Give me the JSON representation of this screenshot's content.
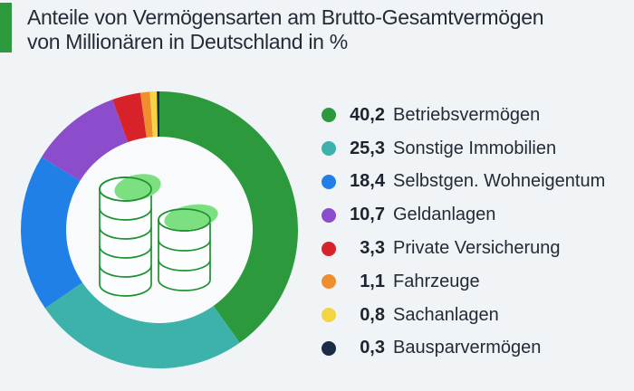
{
  "header": {
    "title_line1": "Anteile von Vermögensarten am Brutto-Gesamtvermögen",
    "title_line2": "von Millionären in Deutschland in %",
    "accent_color": "#2c9a3c"
  },
  "colors": {
    "background": "#f1f4f7",
    "donut_hole": "#f8fafc",
    "coin_outline": "#1f9132",
    "coin_highlight": "#7de080",
    "coin_face": "#fbfdfe"
  },
  "chart_data": {
    "type": "pie",
    "donut": true,
    "title": "Anteile von Vermögensarten am Brutto-Gesamtvermögen von Millionären in Deutschland in %",
    "unit": "%",
    "direction": "clockwise",
    "start_angle_deg": 0,
    "hole_ratio": 0.65,
    "legend_position": "right",
    "center_icon": "coin-stacks",
    "series": [
      {
        "id": "betriebsvermoegen",
        "label": "Betriebsvermögen",
        "value": 40.2,
        "display": "40,2",
        "color": "#2c9a3c"
      },
      {
        "id": "sonstige-immobilien",
        "label": "Sonstige Immobilien",
        "value": 25.3,
        "display": "25,3",
        "color": "#3cb2aa"
      },
      {
        "id": "wohneigentum",
        "label": "Selbstgen. Wohneigentum",
        "value": 18.4,
        "display": "18,4",
        "color": "#2180e8"
      },
      {
        "id": "geldanlagen",
        "label": "Geldanlagen",
        "value": 10.7,
        "display": "10,7",
        "color": "#8c4dcd"
      },
      {
        "id": "private-versicherung",
        "label": "Private Versicherung",
        "value": 3.3,
        "display": "3,3",
        "color": "#d7222a"
      },
      {
        "id": "fahrzeuge",
        "label": "Fahrzeuge",
        "value": 1.1,
        "display": "1,1",
        "color": "#ef8e2e"
      },
      {
        "id": "sachanlagen",
        "label": "Sachanlagen",
        "value": 0.8,
        "display": "0,8",
        "color": "#f5d443"
      },
      {
        "id": "bausparvermoegen",
        "label": "Bausparvermögen",
        "value": 0.3,
        "display": "0,3",
        "color": "#1c2b45"
      }
    ]
  }
}
